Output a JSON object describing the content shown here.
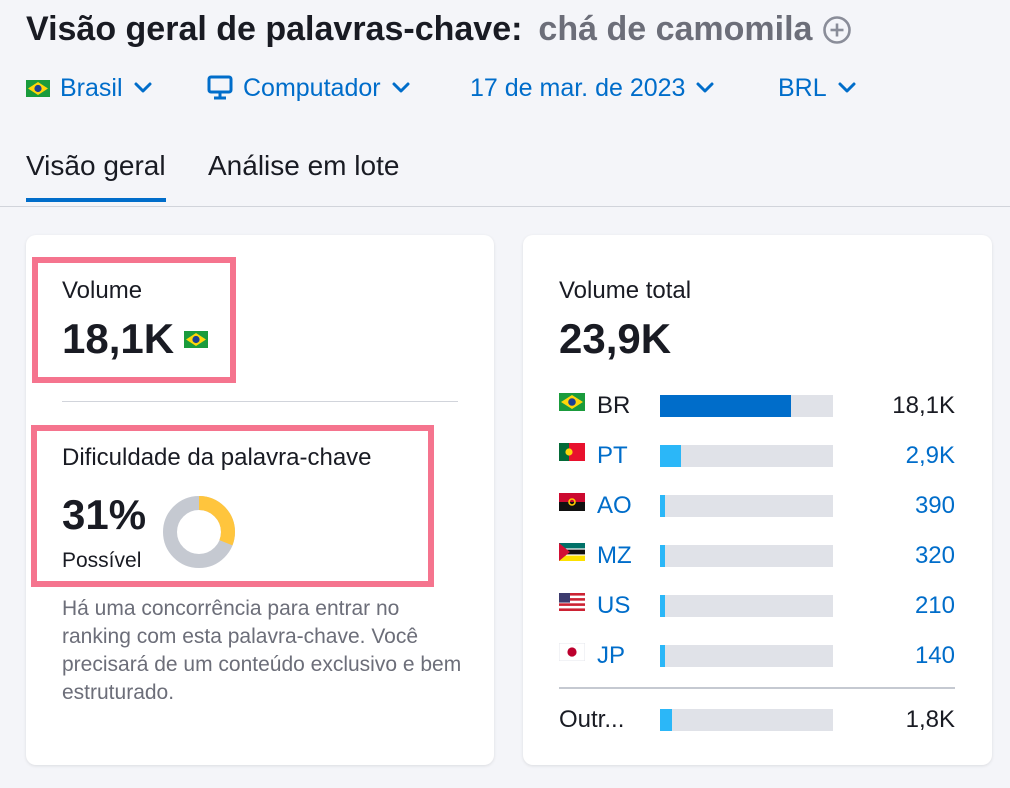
{
  "header": {
    "title": "Visão geral de palavras-chave:",
    "keyword": "chá de camomila",
    "add_icon": "plus-circle-icon"
  },
  "filters": {
    "country": "Brasil",
    "device": "Computador",
    "date": "17 de mar. de 2023",
    "currency": "BRL"
  },
  "tabs": [
    {
      "label": "Visão geral",
      "active": true
    },
    {
      "label": "Análise em lote",
      "active": false
    }
  ],
  "volume_card": {
    "label": "Volume",
    "value": "18,1K",
    "flag": "brazil-flag-icon"
  },
  "kd_card": {
    "label": "Dificuldade da palavra-chave",
    "value": "31%",
    "percent": 31,
    "status": "Possível",
    "description": "Há uma concorrência para entrar no ranking com esta palavra-chave. Você precisará de um conteúdo exclusivo e bem estruturado.",
    "colors": {
      "fill": "#ffc53d",
      "track": "#c5c9d1"
    }
  },
  "total_volume": {
    "label": "Volume total",
    "value": "23,9K",
    "countries": [
      {
        "code": "BR",
        "value": "18,1K",
        "share": 0.76,
        "link": false,
        "flag": "brazil-flag-icon"
      },
      {
        "code": "PT",
        "value": "2,9K",
        "share": 0.12,
        "link": true,
        "flag": "portugal-flag-icon"
      },
      {
        "code": "AO",
        "value": "390",
        "share": 0.02,
        "link": true,
        "flag": "angola-flag-icon"
      },
      {
        "code": "MZ",
        "value": "320",
        "share": 0.02,
        "link": true,
        "flag": "mozambique-flag-icon"
      },
      {
        "code": "US",
        "value": "210",
        "share": 0.02,
        "link": true,
        "flag": "usa-flag-icon"
      },
      {
        "code": "JP",
        "value": "140",
        "share": 0.02,
        "link": true,
        "flag": "japan-flag-icon"
      }
    ],
    "other": {
      "label": "Outr...",
      "value": "1,8K",
      "share": 0.07
    },
    "colors": {
      "primary": "#006dca",
      "secondary": "#2bb7f8",
      "track": "#e0e2e8"
    }
  }
}
